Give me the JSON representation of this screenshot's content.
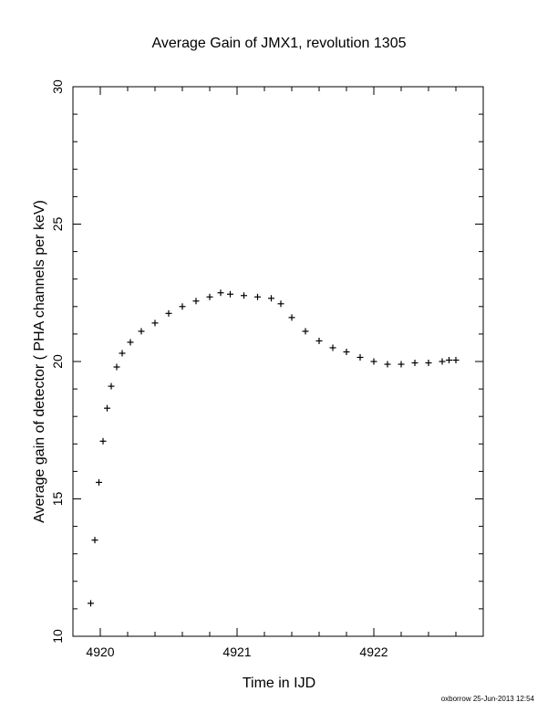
{
  "chart_data": {
    "type": "scatter",
    "title": "Average Gain of JMX1, revolution 1305",
    "xlabel": "Time in IJD",
    "ylabel": "Average gain of detector ( PHA channels per keV)",
    "xlim": [
      4919.8,
      4922.8
    ],
    "ylim": [
      10,
      30
    ],
    "xticks": [
      4920,
      4921,
      4922
    ],
    "yticks": [
      10,
      15,
      20,
      25,
      30
    ],
    "marker": "+",
    "color": "#000000",
    "grid": false,
    "series": [
      {
        "x": [
          4919.93,
          4919.96,
          4919.99,
          4920.02,
          4920.05,
          4920.08,
          4920.12,
          4920.16,
          4920.22,
          4920.3,
          4920.4,
          4920.5,
          4920.6,
          4920.7,
          4920.8,
          4920.88,
          4920.95,
          4921.05,
          4921.15,
          4921.25,
          4921.32,
          4921.4,
          4921.5,
          4921.6,
          4921.7,
          4921.8,
          4921.9,
          4922.0,
          4922.1,
          4922.2,
          4922.3,
          4922.4,
          4922.5,
          4922.55,
          4922.6
        ],
        "y": [
          11.2,
          13.5,
          15.6,
          17.1,
          18.3,
          19.1,
          19.8,
          20.3,
          20.7,
          21.1,
          21.4,
          21.75,
          22.0,
          22.2,
          22.35,
          22.5,
          22.45,
          22.4,
          22.35,
          22.3,
          22.1,
          21.6,
          21.1,
          20.75,
          20.5,
          20.35,
          20.15,
          20.0,
          19.9,
          19.9,
          19.95,
          19.95,
          20.0,
          20.05,
          20.05
        ]
      }
    ]
  },
  "footer": {
    "credit": "oxborrow 25-Jun-2013 12:54"
  }
}
